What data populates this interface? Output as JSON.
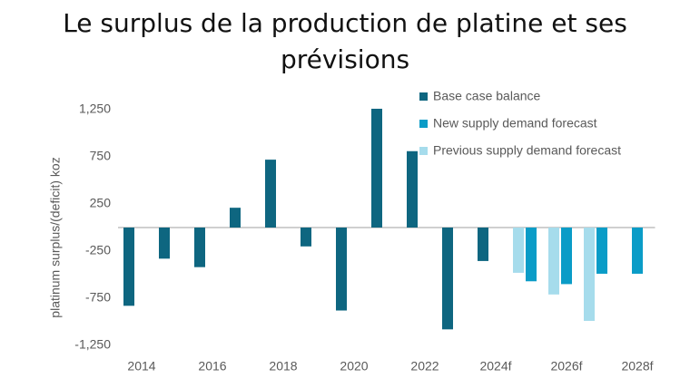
{
  "chart_data": {
    "type": "bar",
    "title": "Le surplus de la production de platine et ses prévisions",
    "y_label": "platinum surplus/(deficit) koz",
    "categories": [
      "2014",
      null,
      "2016",
      null,
      "2018",
      null,
      "2020",
      null,
      "2022",
      null,
      "2024f",
      null,
      "2026f",
      null,
      "2028f"
    ],
    "series": [
      {
        "name": "Base case balance",
        "color": "#0e6680",
        "values": [
          -830,
          -330,
          -420,
          210,
          720,
          -200,
          -880,
          1260,
          810,
          -1080,
          -355,
          null,
          null,
          null,
          null
        ]
      },
      {
        "name": "New supply demand forecast",
        "color": "#0a9cc7",
        "values": [
          null,
          null,
          null,
          null,
          null,
          null,
          null,
          null,
          null,
          null,
          null,
          -570,
          -600,
          -490,
          -490
        ]
      },
      {
        "name": "Previous supply demand forecast",
        "color": "#a6dcec",
        "values": [
          null,
          null,
          null,
          null,
          null,
          null,
          null,
          null,
          null,
          null,
          null,
          -480,
          -710,
          -990,
          null
        ]
      }
    ],
    "ylim": [
      -1250,
      1250
    ],
    "yticks": [
      {
        "value": 1250,
        "label": "1,250"
      },
      750,
      250,
      -250,
      -750,
      {
        "value": -1250,
        "label": "-1,250"
      }
    ],
    "grid": false,
    "legend": "top-right"
  }
}
